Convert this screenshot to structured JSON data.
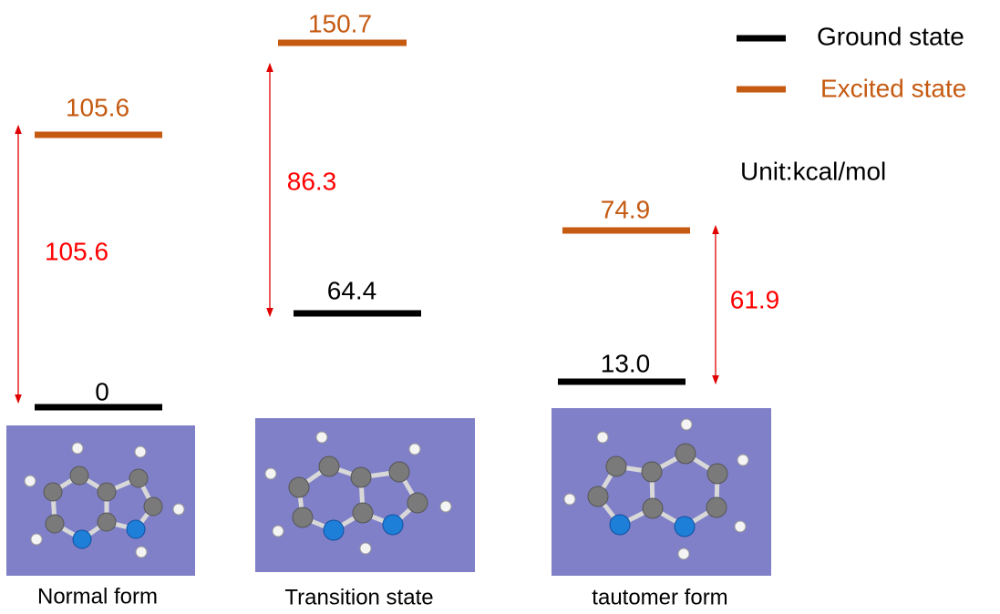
{
  "legend": {
    "items": [
      {
        "label": "Ground state"
      },
      {
        "label": "Excited state"
      }
    ],
    "unit": "Unit:kcal/mol"
  },
  "columns": [
    {
      "caption": "Normal form",
      "ground": "0",
      "excited": "105.6",
      "gap": "105.6"
    },
    {
      "caption": "Transition state",
      "ground": "64.4",
      "excited": "150.7",
      "gap": "86.3"
    },
    {
      "caption": "tautomer form",
      "ground": "13.0",
      "excited": "74.9",
      "gap": "61.9"
    }
  ]
}
